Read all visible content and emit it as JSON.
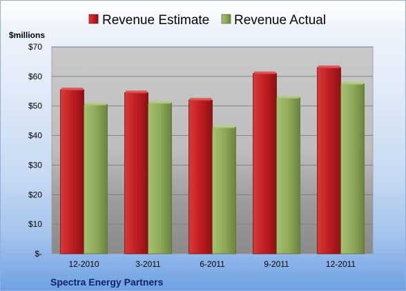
{
  "chart_data": {
    "type": "bar",
    "unit_label": "$millions",
    "company": "Spectra Energy Partners",
    "categories": [
      "12-2010",
      "3-2011",
      "6-2011",
      "9-2011",
      "12-2011"
    ],
    "series": [
      {
        "name": "Revenue Estimate",
        "values": [
          55.5,
          54.5,
          52.0,
          61.0,
          63.0
        ],
        "color": "#c0262a"
      },
      {
        "name": "Revenue Actual",
        "values": [
          50.5,
          51.0,
          42.8,
          52.8,
          57.5
        ],
        "color": "#8eab5a"
      }
    ],
    "ylim": [
      0,
      70
    ],
    "yticks": [
      0,
      10,
      20,
      30,
      40,
      50,
      60,
      70
    ],
    "ytick_labels": [
      "$-",
      "$10",
      "$20",
      "$30",
      "$40",
      "$50",
      "$60",
      "$70"
    ],
    "grid": true,
    "legend_position": "top"
  }
}
